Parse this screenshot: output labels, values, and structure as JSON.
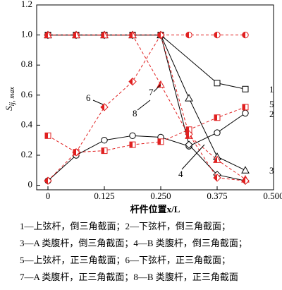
{
  "chart_data": {
    "type": "line",
    "x_label": "杆件位置x/L",
    "y_label": "S",
    "y_label_sub": "ij, max",
    "xlim": [
      -0.025,
      0.5
    ],
    "xticks": [
      0,
      0.125,
      {
        "value": 0.25,
        "label": "0.250"
      },
      0.375,
      {
        "value": 0.5,
        "label": "0.500"
      }
    ],
    "ylim": [
      -0.03,
      1.2
    ],
    "yticks": [
      0,
      0.2,
      0.4,
      0.6,
      0.8,
      {
        "value": 1.0,
        "label": "1.0"
      },
      1.2
    ],
    "series": [
      {
        "name": "1",
        "color": "#000000",
        "marker": "square",
        "dashed": false,
        "x": [
          0,
          0.0625,
          0.125,
          0.1875,
          0.25,
          0.375,
          0.4375
        ],
        "values": [
          1,
          1,
          1,
          1,
          1,
          0.68,
          0.64
        ]
      },
      {
        "name": "2",
        "color": "#000000",
        "marker": "circle",
        "dashed": false,
        "x": [
          0,
          0.0625,
          0.125,
          0.1875,
          0.25,
          0.3125,
          0.375,
          0.4375
        ],
        "values": [
          0.03,
          0.2,
          0.3,
          0.33,
          0.32,
          0.26,
          0.35,
          0.48
        ]
      },
      {
        "name": "3",
        "color": "#000000",
        "marker": "triangle",
        "dashed": false,
        "x": [
          0,
          0.0625,
          0.125,
          0.1875,
          0.25,
          0.3125,
          0.375,
          0.4375
        ],
        "values": [
          1,
          1,
          1,
          1,
          1,
          0.58,
          0.19,
          0.1
        ]
      },
      {
        "name": "4",
        "color": "#000000",
        "marker": "diamond",
        "dashed": false,
        "x": [
          0,
          0.0625,
          0.125,
          0.1875,
          0.25,
          0.3125,
          0.375,
          0.4375
        ],
        "values": [
          1,
          1,
          1,
          1,
          1,
          0.27,
          0.07,
          0.03
        ]
      },
      {
        "name": "5",
        "color": "#e02020",
        "marker": "square",
        "dashed": true,
        "x": [
          0,
          0.0625,
          0.125,
          0.1875,
          0.25,
          0.3125,
          0.375,
          0.4375
        ],
        "values": [
          0.33,
          0.22,
          0.23,
          0.27,
          0.29,
          0.37,
          0.45,
          0.52
        ]
      },
      {
        "name": "6",
        "color": "#e02020",
        "marker": "circle",
        "dashed": true,
        "x": [
          0,
          0.0625,
          0.125,
          0.1875,
          0.25,
          0.3125,
          0.375,
          0.4375
        ],
        "values": [
          1,
          1,
          1,
          1,
          1,
          1,
          1,
          1
        ]
      },
      {
        "name": "7",
        "color": "#e02020",
        "marker": "triangle",
        "dashed": true,
        "x": [
          0,
          0.0625,
          0.125,
          0.1875,
          0.25,
          0.3125,
          0.375,
          0.4375
        ],
        "values": [
          1,
          1,
          1,
          1,
          0.67,
          0.33,
          0.17,
          0.04
        ]
      },
      {
        "name": "8",
        "color": "#e02020",
        "marker": "diamond",
        "dashed": true,
        "x": [
          0,
          0.0625,
          0.125,
          0.1875,
          0.25,
          0.3125,
          0.375,
          0.4375
        ],
        "values": [
          0.03,
          0.22,
          0.52,
          0.69,
          1,
          0.34,
          0.05,
          0.03
        ]
      }
    ],
    "legend_lines": [
      "1—上弦杆，倒三角截面；2—下弦杆，倒三角截面；",
      "3—A 类腹杆，倒三角截面；4—B 类腹杆，倒三角截面；",
      "5—上弦杆，正三角截面；6—下弦杆，正三角截面；",
      "7—A 类腹杆，正三角截面；8—B 类腹杆，正三角截面"
    ]
  }
}
